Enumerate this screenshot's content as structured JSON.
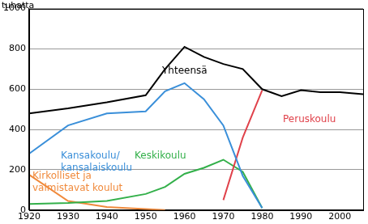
{
  "chart_data": {
    "type": "line",
    "ylabel": "tuhatta",
    "x": [
      1920,
      1930,
      1940,
      1950,
      1955,
      1960,
      1965,
      1970,
      1975,
      1980,
      1985,
      1990,
      1995,
      2000,
      2006
    ],
    "series": [
      {
        "name": "Yhteensä",
        "color": "#000000",
        "values": [
          480,
          505,
          535,
          570,
          700,
          810,
          760,
          725,
          700,
          600,
          565,
          595,
          585,
          585,
          575
        ]
      },
      {
        "name": "Kansakoulu/\nkansalaiskoulu",
        "color": "#3a8fd9",
        "values": [
          280,
          420,
          480,
          490,
          590,
          630,
          550,
          420,
          170,
          10,
          null,
          null,
          null,
          null,
          null
        ]
      },
      {
        "name": "Peruskoulu",
        "color": "#e0424b",
        "values": [
          null,
          null,
          null,
          null,
          null,
          null,
          null,
          50,
          360,
          595,
          null,
          null,
          null,
          null,
          null
        ]
      },
      {
        "name": "Keskikoulu",
        "color": "#33b04a",
        "values": [
          30,
          35,
          45,
          80,
          115,
          180,
          210,
          250,
          190,
          10,
          null,
          null,
          null,
          null,
          null
        ]
      },
      {
        "name": "Kirkolliset ja\nvalmistavat koulut",
        "color": "#f08a3c",
        "values": [
          175,
          45,
          15,
          5,
          0,
          null,
          null,
          null,
          null,
          null,
          null,
          null,
          null,
          null,
          null
        ]
      }
    ],
    "xlim": [
      1920,
      2006
    ],
    "xticks": [
      1920,
      1930,
      1940,
      1950,
      1960,
      1970,
      1980,
      1990,
      2000
    ],
    "ylim": [
      0,
      1000
    ],
    "yticks": [
      0,
      200,
      400,
      600,
      800,
      1000
    ],
    "grid": true
  }
}
